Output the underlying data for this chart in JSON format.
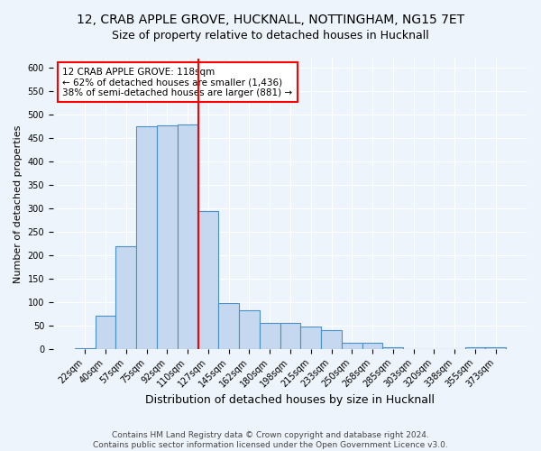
{
  "title": "12, CRAB APPLE GROVE, HUCKNALL, NOTTINGHAM, NG15 7ET",
  "subtitle": "Size of property relative to detached houses in Hucknall",
  "xlabel": "Distribution of detached houses by size in Hucknall",
  "ylabel": "Number of detached properties",
  "categories": [
    "22sqm",
    "40sqm",
    "57sqm",
    "75sqm",
    "92sqm",
    "110sqm",
    "127sqm",
    "145sqm",
    "162sqm",
    "180sqm",
    "198sqm",
    "215sqm",
    "233sqm",
    "250sqm",
    "268sqm",
    "285sqm",
    "303sqm",
    "320sqm",
    "338sqm",
    "355sqm",
    "373sqm"
  ],
  "values": [
    2,
    70,
    220,
    475,
    478,
    480,
    295,
    97,
    82,
    55,
    55,
    47,
    40,
    13,
    13,
    3,
    0,
    0,
    0,
    3,
    3
  ],
  "bar_color": "#c5d8f0",
  "bar_edge_color": "#4a90c4",
  "bar_width": 1.0,
  "vline_x": 5.53,
  "vline_color": "red",
  "annotation_text": "12 CRAB APPLE GROVE: 118sqm\n← 62% of detached houses are smaller (1,436)\n38% of semi-detached houses are larger (881) →",
  "annotation_box_color": "white",
  "annotation_box_edge_color": "red",
  "ylim": [
    0,
    620
  ],
  "yticks": [
    0,
    50,
    100,
    150,
    200,
    250,
    300,
    350,
    400,
    450,
    500,
    550,
    600
  ],
  "footnote1": "Contains HM Land Registry data © Crown copyright and database right 2024.",
  "footnote2": "Contains public sector information licensed under the Open Government Licence v3.0.",
  "bg_color": "#eef4fb",
  "grid_color": "white",
  "title_fontsize": 10,
  "xlabel_fontsize": 9,
  "ylabel_fontsize": 8,
  "tick_fontsize": 7,
  "annotation_fontsize": 7.5,
  "footnote_fontsize": 6.5
}
